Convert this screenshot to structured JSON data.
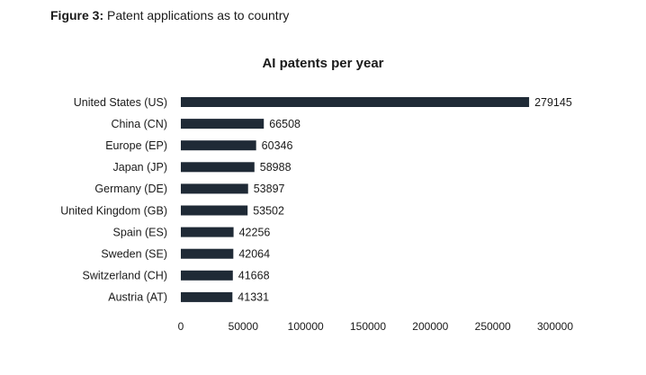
{
  "figure": {
    "label": "Figure 3:",
    "caption": "Patent applications as to country"
  },
  "chart_data": {
    "type": "bar",
    "orientation": "horizontal",
    "title": "AI patents per year",
    "xlabel": "",
    "ylabel": "",
    "categories": [
      "United States (US)",
      "China (CN)",
      "Europe (EP)",
      "Japan (JP)",
      "Germany (DE)",
      "United Kingdom (GB)",
      "Spain (ES)",
      "Sweden (SE)",
      "Switzerland (CH)",
      "Austria (AT)"
    ],
    "values": [
      279145,
      66508,
      60346,
      58988,
      53897,
      53502,
      42256,
      42064,
      41668,
      41331
    ],
    "xlim": [
      0,
      300000
    ],
    "xticks": [
      0,
      50000,
      100000,
      150000,
      200000,
      250000,
      300000
    ],
    "grid": false,
    "legend": "none",
    "bar_color": "#1f2a36",
    "data_labels": true
  }
}
